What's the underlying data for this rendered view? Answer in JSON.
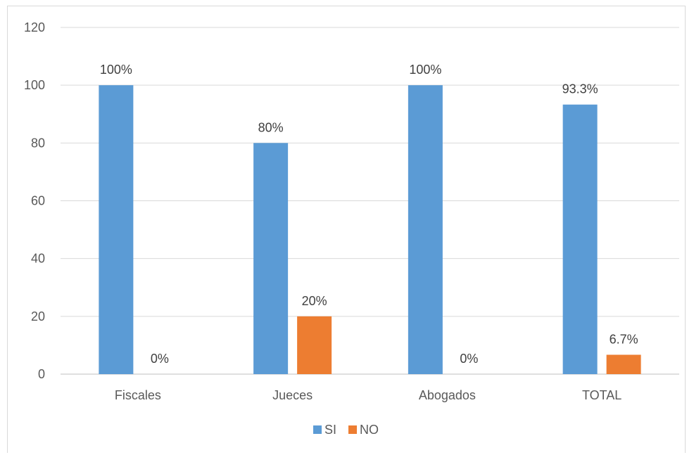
{
  "chart_data": {
    "type": "bar",
    "categories": [
      "Fiscales",
      "Jueces",
      "Abogados",
      "TOTAL"
    ],
    "series": [
      {
        "name": "SI",
        "values": [
          100,
          80,
          100,
          93.3
        ],
        "labels": [
          "100%",
          "80%",
          "100%",
          "93.3%"
        ],
        "color": "#5b9bd5"
      },
      {
        "name": "NO",
        "values": [
          0,
          20,
          0,
          6.7
        ],
        "labels": [
          "0%",
          "20%",
          "0%",
          "6.7%"
        ],
        "color": "#ed7d31"
      }
    ],
    "yticks": [
      "0",
      "20",
      "40",
      "60",
      "80",
      "100",
      "120"
    ],
    "ylim": [
      0,
      120
    ],
    "grid": true,
    "legend_position": "bottom"
  }
}
